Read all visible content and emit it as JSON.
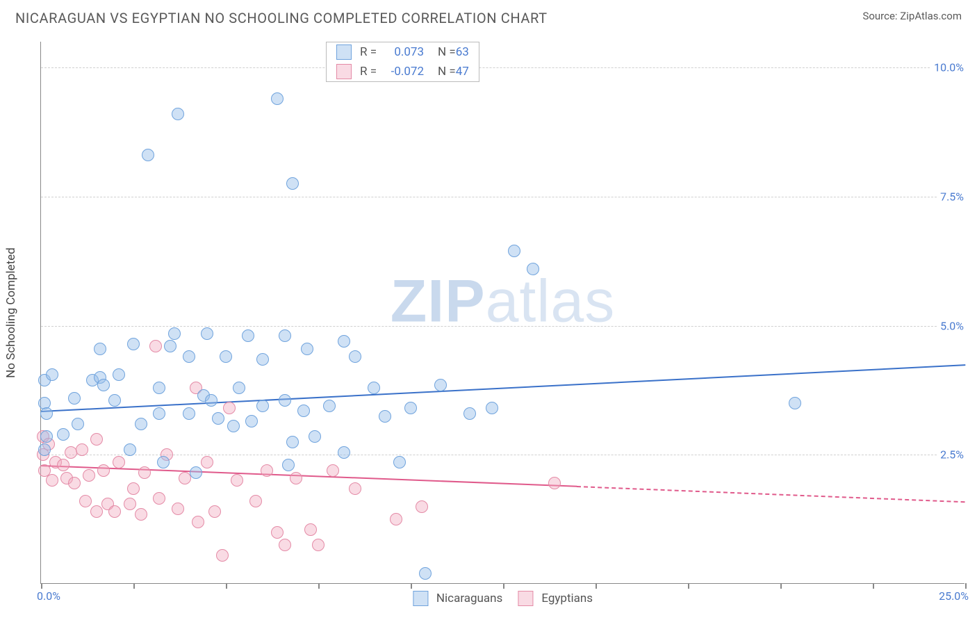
{
  "header": {
    "title": "NICARAGUAN VS EGYPTIAN NO SCHOOLING COMPLETED CORRELATION CHART",
    "source_label": "Source: ",
    "source_name": "ZipAtlas.com"
  },
  "watermark": {
    "zip": "ZIP",
    "atlas": "atlas"
  },
  "chart": {
    "type": "scatter",
    "ylabel": "No Schooling Completed",
    "xlim": [
      0.0,
      25.0
    ],
    "ylim": [
      0.0,
      10.5
    ],
    "x_min_label": "0.0%",
    "x_max_label": "25.0%",
    "y_ticks": [
      {
        "v": 2.5,
        "label": "2.5%"
      },
      {
        "v": 5.0,
        "label": "5.0%"
      },
      {
        "v": 7.5,
        "label": "7.5%"
      },
      {
        "v": 10.0,
        "label": "10.0%"
      }
    ],
    "x_tick_marks": [
      0,
      2.5,
      5,
      7.5,
      10,
      12.5,
      15,
      17.5,
      20,
      22.5,
      25
    ],
    "background_color": "#ffffff",
    "grid_color": "#cfcfcf",
    "marker_radius": 9,
    "marker_stroke_width": 1.5,
    "series": {
      "nicaraguans": {
        "label": "Nicaraguans",
        "fill": "rgba(149,189,232,0.45)",
        "stroke": "#6fa3dd",
        "trend_color": "#3a71c9",
        "trend": {
          "x1": 0.0,
          "y1": 3.35,
          "x2": 25.0,
          "y2": 4.25
        },
        "r_label": "R = ",
        "r_value": "0.073",
        "n_label": "N = ",
        "n_value": "63",
        "points": [
          [
            0.1,
            3.95
          ],
          [
            0.1,
            3.5
          ],
          [
            0.15,
            3.3
          ],
          [
            0.15,
            2.85
          ],
          [
            0.1,
            2.6
          ],
          [
            0.3,
            4.05
          ],
          [
            0.6,
            2.9
          ],
          [
            0.9,
            3.6
          ],
          [
            1.0,
            3.1
          ],
          [
            1.4,
            3.95
          ],
          [
            1.6,
            4.55
          ],
          [
            1.6,
            4.0
          ],
          [
            1.7,
            3.85
          ],
          [
            2.0,
            3.55
          ],
          [
            2.1,
            4.05
          ],
          [
            2.4,
            2.6
          ],
          [
            2.5,
            4.65
          ],
          [
            2.7,
            3.1
          ],
          [
            2.9,
            8.3
          ],
          [
            3.2,
            3.3
          ],
          [
            3.2,
            3.8
          ],
          [
            3.3,
            2.35
          ],
          [
            3.5,
            4.6
          ],
          [
            3.6,
            4.85
          ],
          [
            3.7,
            9.1
          ],
          [
            4.0,
            3.3
          ],
          [
            4.0,
            4.4
          ],
          [
            4.2,
            2.15
          ],
          [
            4.4,
            3.65
          ],
          [
            4.5,
            4.85
          ],
          [
            4.6,
            3.55
          ],
          [
            4.8,
            3.2
          ],
          [
            5.0,
            4.4
          ],
          [
            5.2,
            3.05
          ],
          [
            5.35,
            3.8
          ],
          [
            5.6,
            4.8
          ],
          [
            5.7,
            3.15
          ],
          [
            6.0,
            3.45
          ],
          [
            6.0,
            4.35
          ],
          [
            6.4,
            9.4
          ],
          [
            6.6,
            3.55
          ],
          [
            6.6,
            4.8
          ],
          [
            6.7,
            2.3
          ],
          [
            6.8,
            2.75
          ],
          [
            6.8,
            7.75
          ],
          [
            7.1,
            3.35
          ],
          [
            7.2,
            4.55
          ],
          [
            7.4,
            2.85
          ],
          [
            7.8,
            3.45
          ],
          [
            8.2,
            4.7
          ],
          [
            8.2,
            2.55
          ],
          [
            8.5,
            4.4
          ],
          [
            9.0,
            3.8
          ],
          [
            9.3,
            3.25
          ],
          [
            9.7,
            2.35
          ],
          [
            10.0,
            3.4
          ],
          [
            10.4,
            0.2
          ],
          [
            10.8,
            3.85
          ],
          [
            11.6,
            3.3
          ],
          [
            12.2,
            3.4
          ],
          [
            12.8,
            6.45
          ],
          [
            13.3,
            6.1
          ],
          [
            20.4,
            3.5
          ]
        ]
      },
      "egyptians": {
        "label": "Egyptians",
        "fill": "rgba(240,170,190,0.42)",
        "stroke": "#e48aa6",
        "trend_color": "#e05a8b",
        "trend_solid": {
          "x1": 0.0,
          "y1": 2.3,
          "x2": 14.5,
          "y2": 1.9
        },
        "trend_dash": {
          "x1": 14.5,
          "y1": 1.9,
          "x2": 25.0,
          "y2": 1.6
        },
        "r_label": "R = ",
        "r_value": "-0.072",
        "n_label": "N = ",
        "n_value": "47",
        "points": [
          [
            0.05,
            2.85
          ],
          [
            0.05,
            2.5
          ],
          [
            0.1,
            2.2
          ],
          [
            0.2,
            2.7
          ],
          [
            0.3,
            2.0
          ],
          [
            0.4,
            2.35
          ],
          [
            0.6,
            2.3
          ],
          [
            0.7,
            2.05
          ],
          [
            0.8,
            2.55
          ],
          [
            0.9,
            1.95
          ],
          [
            1.1,
            2.6
          ],
          [
            1.2,
            1.6
          ],
          [
            1.3,
            2.1
          ],
          [
            1.5,
            2.8
          ],
          [
            1.5,
            1.4
          ],
          [
            1.7,
            2.2
          ],
          [
            1.8,
            1.55
          ],
          [
            2.0,
            1.4
          ],
          [
            2.1,
            2.35
          ],
          [
            2.4,
            1.55
          ],
          [
            2.5,
            1.85
          ],
          [
            2.7,
            1.35
          ],
          [
            2.8,
            2.15
          ],
          [
            3.1,
            4.6
          ],
          [
            3.2,
            1.65
          ],
          [
            3.4,
            2.5
          ],
          [
            3.7,
            1.45
          ],
          [
            3.9,
            2.05
          ],
          [
            4.2,
            3.8
          ],
          [
            4.25,
            1.2
          ],
          [
            4.5,
            2.35
          ],
          [
            4.7,
            1.4
          ],
          [
            4.9,
            0.55
          ],
          [
            5.1,
            3.4
          ],
          [
            5.3,
            2.0
          ],
          [
            5.8,
            1.6
          ],
          [
            6.1,
            2.2
          ],
          [
            6.4,
            1.0
          ],
          [
            6.6,
            0.75
          ],
          [
            6.9,
            2.05
          ],
          [
            7.3,
            1.05
          ],
          [
            7.5,
            0.75
          ],
          [
            7.9,
            2.2
          ],
          [
            8.5,
            1.85
          ],
          [
            9.6,
            1.25
          ],
          [
            10.3,
            1.5
          ],
          [
            13.9,
            1.95
          ]
        ]
      }
    }
  }
}
